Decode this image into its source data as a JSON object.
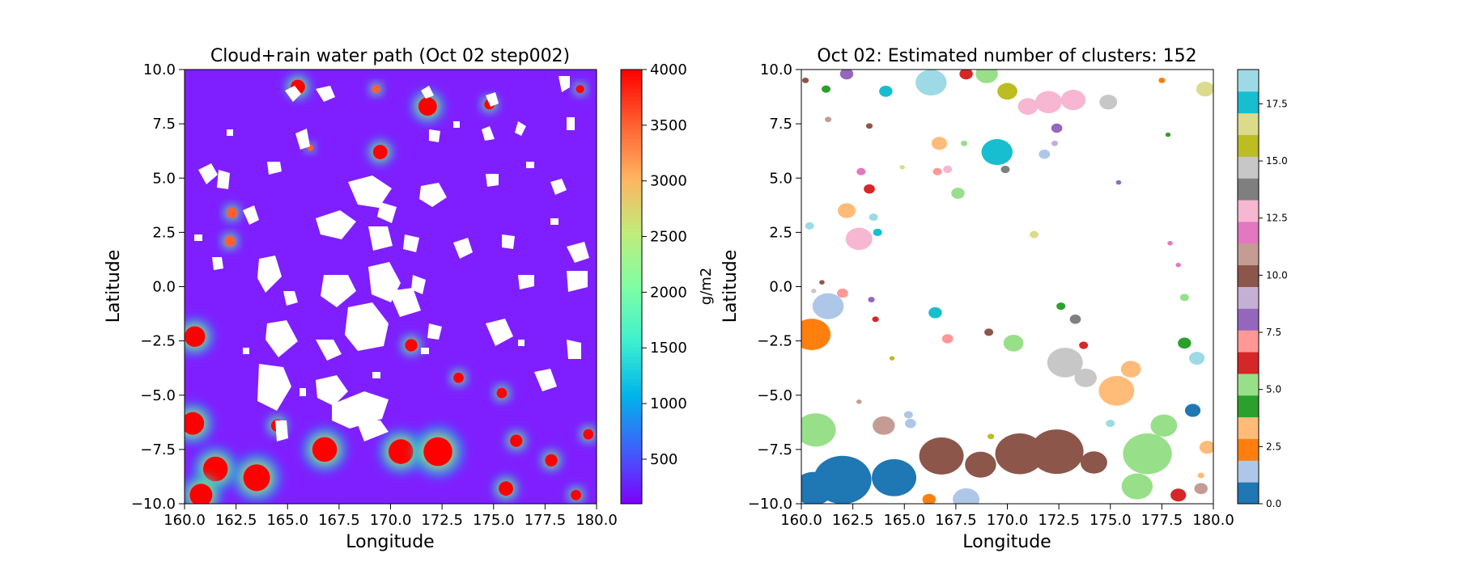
{
  "chart_data": [
    {
      "type": "heatmap",
      "title": "Cloud+rain water path (Oct 02 step002)",
      "xlabel": "Longitude",
      "ylabel": "Latitude",
      "xlim": [
        160.0,
        180.0
      ],
      "ylim": [
        -10.0,
        10.0
      ],
      "xticks": [
        "160.0",
        "162.5",
        "165.0",
        "167.5",
        "170.0",
        "172.5",
        "175.0",
        "177.5",
        "180.0"
      ],
      "yticks": [
        "10.0",
        "7.5",
        "5.0",
        "2.5",
        "0.0",
        "−2.5",
        "−5.0",
        "−7.5",
        "−10.0"
      ],
      "background_color": "#7f1fff",
      "colorbar": {
        "label": "g/m2",
        "range": [
          100,
          4000
        ],
        "ticks": [
          "4000",
          "3500",
          "3000",
          "2500",
          "2000",
          "1500",
          "1000",
          "500"
        ],
        "colormap": [
          "#7f00ff",
          "#3f60fa",
          "#00b4eb",
          "#3ff0cf",
          "#80fea4",
          "#c0ec7a",
          "#ffb360",
          "#ff5f30",
          "#ff0000"
        ]
      },
      "high_value_cells": [
        {
          "lon": 165.5,
          "lat": 9.2,
          "value": 4000,
          "r": 0.35
        },
        {
          "lon": 171.8,
          "lat": 8.3,
          "value": 4000,
          "r": 0.45
        },
        {
          "lon": 169.5,
          "lat": 6.2,
          "value": 4000,
          "r": 0.35
        },
        {
          "lon": 174.8,
          "lat": 8.4,
          "value": 3800,
          "r": 0.25
        },
        {
          "lon": 160.5,
          "lat": -2.3,
          "value": 4000,
          "r": 0.5
        },
        {
          "lon": 162.3,
          "lat": 3.4,
          "value": 3600,
          "r": 0.25
        },
        {
          "lon": 162.2,
          "lat": 2.1,
          "value": 3600,
          "r": 0.25
        },
        {
          "lon": 160.4,
          "lat": -6.3,
          "value": 4000,
          "r": 0.55
        },
        {
          "lon": 161.5,
          "lat": -8.4,
          "value": 4000,
          "r": 0.6
        },
        {
          "lon": 160.8,
          "lat": -9.6,
          "value": 4000,
          "r": 0.55
        },
        {
          "lon": 163.5,
          "lat": -8.8,
          "value": 4000,
          "r": 0.65
        },
        {
          "lon": 164.5,
          "lat": -6.4,
          "value": 4000,
          "r": 0.3
        },
        {
          "lon": 166.8,
          "lat": -7.5,
          "value": 4000,
          "r": 0.6
        },
        {
          "lon": 170.5,
          "lat": -7.6,
          "value": 4000,
          "r": 0.6
        },
        {
          "lon": 172.3,
          "lat": -7.6,
          "value": 4000,
          "r": 0.7
        },
        {
          "lon": 171.0,
          "lat": -2.7,
          "value": 3800,
          "r": 0.3
        },
        {
          "lon": 173.3,
          "lat": -4.2,
          "value": 3800,
          "r": 0.25
        },
        {
          "lon": 175.4,
          "lat": -4.9,
          "value": 3800,
          "r": 0.25
        },
        {
          "lon": 176.1,
          "lat": -7.1,
          "value": 4000,
          "r": 0.3
        },
        {
          "lon": 175.6,
          "lat": -9.3,
          "value": 4000,
          "r": 0.35
        },
        {
          "lon": 177.8,
          "lat": -8.0,
          "value": 3800,
          "r": 0.3
        },
        {
          "lon": 179.6,
          "lat": -6.8,
          "value": 3800,
          "r": 0.25
        },
        {
          "lon": 179.0,
          "lat": -9.6,
          "value": 3800,
          "r": 0.25
        },
        {
          "lon": 179.2,
          "lat": 9.1,
          "value": 3800,
          "r": 0.2
        },
        {
          "lon": 166.1,
          "lat": 6.4,
          "value": 3400,
          "r": 0.15
        },
        {
          "lon": 169.3,
          "lat": 9.1,
          "value": 3400,
          "r": 0.2
        }
      ]
    },
    {
      "type": "scatter",
      "title": "Oct 02: Estimated number of clusters: 152",
      "xlabel": "Longitude",
      "ylabel": "Latitude",
      "xlim": [
        160.0,
        180.0
      ],
      "ylim": [
        -10.0,
        10.0
      ],
      "xticks": [
        "160.0",
        "162.5",
        "165.0",
        "167.5",
        "170.0",
        "172.5",
        "175.0",
        "177.5",
        "180.0"
      ],
      "yticks": [
        "10.0",
        "7.5",
        "5.0",
        "2.5",
        "0.0",
        "−2.5",
        "−5.0",
        "−7.5",
        "−10.0"
      ],
      "colorbar": {
        "range": [
          0,
          19
        ],
        "ticks": [
          "17.5",
          "15.0",
          "12.5",
          "10.0",
          "7.5",
          "5.0",
          "2.5",
          "0.0"
        ],
        "colors": [
          "#1f77b4",
          "#aec7e8",
          "#ff7f0e",
          "#ffbb78",
          "#2ca02c",
          "#98df8a",
          "#d62728",
          "#ff9896",
          "#9467bd",
          "#c5b0d5",
          "#8c564b",
          "#c49c94",
          "#e377c2",
          "#f7b6d2",
          "#7f7f7f",
          "#c7c7c7",
          "#bcbd22",
          "#dbdb8d",
          "#17becf",
          "#9edae5"
        ]
      },
      "clusters": [
        {
          "lon": 160.2,
          "lat": 9.5,
          "label": 10,
          "r": 0.15
        },
        {
          "lon": 161.2,
          "lat": 9.1,
          "label": 4,
          "r": 0.2
        },
        {
          "lon": 162.2,
          "lat": 9.8,
          "label": 8,
          "r": 0.3
        },
        {
          "lon": 164.1,
          "lat": 9.0,
          "label": 18,
          "r": 0.3
        },
        {
          "lon": 166.3,
          "lat": 9.4,
          "label": 19,
          "r": 0.7
        },
        {
          "lon": 168.0,
          "lat": 9.8,
          "label": 6,
          "r": 0.3
        },
        {
          "lon": 169.0,
          "lat": 9.8,
          "label": 5,
          "r": 0.5
        },
        {
          "lon": 170.0,
          "lat": 9.0,
          "label": 16,
          "r": 0.45
        },
        {
          "lon": 172.0,
          "lat": 8.5,
          "label": 13,
          "r": 0.6
        },
        {
          "lon": 171.0,
          "lat": 8.3,
          "label": 13,
          "r": 0.45
        },
        {
          "lon": 173.2,
          "lat": 8.6,
          "label": 13,
          "r": 0.55
        },
        {
          "lon": 174.9,
          "lat": 8.5,
          "label": 15,
          "r": 0.4
        },
        {
          "lon": 177.5,
          "lat": 9.5,
          "label": 2,
          "r": 0.15
        },
        {
          "lon": 179.6,
          "lat": 9.1,
          "label": 17,
          "r": 0.4
        },
        {
          "lon": 172.4,
          "lat": 7.3,
          "label": 8,
          "r": 0.25
        },
        {
          "lon": 172.3,
          "lat": 6.6,
          "label": 9,
          "r": 0.15
        },
        {
          "lon": 169.5,
          "lat": 6.2,
          "label": 18,
          "r": 0.7
        },
        {
          "lon": 171.8,
          "lat": 6.1,
          "label": 1,
          "r": 0.25
        },
        {
          "lon": 166.7,
          "lat": 6.6,
          "label": 3,
          "r": 0.35
        },
        {
          "lon": 167.9,
          "lat": 6.6,
          "label": 5,
          "r": 0.15
        },
        {
          "lon": 163.3,
          "lat": 4.5,
          "label": 6,
          "r": 0.25
        },
        {
          "lon": 162.9,
          "lat": 5.3,
          "label": 12,
          "r": 0.2
        },
        {
          "lon": 162.2,
          "lat": 3.5,
          "label": 3,
          "r": 0.4
        },
        {
          "lon": 167.6,
          "lat": 4.3,
          "label": 5,
          "r": 0.3
        },
        {
          "lon": 166.6,
          "lat": 5.3,
          "label": 7,
          "r": 0.2
        },
        {
          "lon": 167.1,
          "lat": 5.4,
          "label": 13,
          "r": 0.2
        },
        {
          "lon": 169.9,
          "lat": 5.4,
          "label": 14,
          "r": 0.2
        },
        {
          "lon": 161.3,
          "lat": 7.7,
          "label": 11,
          "r": 0.15
        },
        {
          "lon": 163.3,
          "lat": 7.4,
          "label": 10,
          "r": 0.15
        },
        {
          "lon": 162.8,
          "lat": 2.2,
          "label": 13,
          "r": 0.6
        },
        {
          "lon": 163.7,
          "lat": 2.5,
          "label": 18,
          "r": 0.2
        },
        {
          "lon": 163.5,
          "lat": 3.2,
          "label": 19,
          "r": 0.2
        },
        {
          "lon": 160.4,
          "lat": 2.8,
          "label": 19,
          "r": 0.2
        },
        {
          "lon": 171.3,
          "lat": 2.4,
          "label": 17,
          "r": 0.2
        },
        {
          "lon": 160.5,
          "lat": -2.2,
          "label": 2,
          "r": 0.85
        },
        {
          "lon": 161.3,
          "lat": -0.9,
          "label": 1,
          "r": 0.7
        },
        {
          "lon": 162.0,
          "lat": -0.3,
          "label": 7,
          "r": 0.25
        },
        {
          "lon": 163.4,
          "lat": -0.6,
          "label": 8,
          "r": 0.15
        },
        {
          "lon": 163.6,
          "lat": -1.5,
          "label": 6,
          "r": 0.15
        },
        {
          "lon": 166.5,
          "lat": -1.2,
          "label": 18,
          "r": 0.3
        },
        {
          "lon": 167.1,
          "lat": -2.4,
          "label": 7,
          "r": 0.25
        },
        {
          "lon": 169.1,
          "lat": -2.1,
          "label": 10,
          "r": 0.2
        },
        {
          "lon": 170.3,
          "lat": -2.6,
          "label": 5,
          "r": 0.45
        },
        {
          "lon": 172.6,
          "lat": -0.9,
          "label": 4,
          "r": 0.2
        },
        {
          "lon": 173.3,
          "lat": -1.5,
          "label": 14,
          "r": 0.25
        },
        {
          "lon": 173.7,
          "lat": -2.7,
          "label": 6,
          "r": 0.2
        },
        {
          "lon": 172.8,
          "lat": -3.5,
          "label": 15,
          "r": 0.8
        },
        {
          "lon": 173.8,
          "lat": -4.2,
          "label": 15,
          "r": 0.5
        },
        {
          "lon": 175.3,
          "lat": -4.8,
          "label": 3,
          "r": 0.8
        },
        {
          "lon": 176.0,
          "lat": -3.8,
          "label": 3,
          "r": 0.45
        },
        {
          "lon": 178.6,
          "lat": -2.6,
          "label": 4,
          "r": 0.3
        },
        {
          "lon": 179.2,
          "lat": -3.3,
          "label": 19,
          "r": 0.35
        },
        {
          "lon": 178.6,
          "lat": -0.5,
          "label": 5,
          "r": 0.2
        },
        {
          "lon": 175.0,
          "lat": -6.3,
          "label": 19,
          "r": 0.2
        },
        {
          "lon": 160.7,
          "lat": -6.6,
          "label": 5,
          "r": 0.9
        },
        {
          "lon": 164.0,
          "lat": -6.4,
          "label": 11,
          "r": 0.5
        },
        {
          "lon": 165.3,
          "lat": -6.3,
          "label": 1,
          "r": 0.25
        },
        {
          "lon": 162.0,
          "lat": -8.9,
          "label": 0,
          "r": 1.3
        },
        {
          "lon": 164.5,
          "lat": -8.8,
          "label": 0,
          "r": 1.0
        },
        {
          "lon": 160.6,
          "lat": -9.3,
          "label": 0,
          "r": 0.9
        },
        {
          "lon": 166.8,
          "lat": -7.8,
          "label": 10,
          "r": 1.0
        },
        {
          "lon": 168.7,
          "lat": -8.2,
          "label": 10,
          "r": 0.7
        },
        {
          "lon": 170.6,
          "lat": -7.7,
          "label": 10,
          "r": 1.1
        },
        {
          "lon": 172.4,
          "lat": -7.6,
          "label": 10,
          "r": 1.2
        },
        {
          "lon": 174.2,
          "lat": -8.1,
          "label": 10,
          "r": 0.6
        },
        {
          "lon": 168.0,
          "lat": -9.8,
          "label": 1,
          "r": 0.6
        },
        {
          "lon": 166.2,
          "lat": -9.8,
          "label": 2,
          "r": 0.3
        },
        {
          "lon": 176.8,
          "lat": -7.7,
          "label": 5,
          "r": 1.1
        },
        {
          "lon": 177.6,
          "lat": -6.4,
          "label": 5,
          "r": 0.6
        },
        {
          "lon": 176.3,
          "lat": -9.2,
          "label": 5,
          "r": 0.7
        },
        {
          "lon": 178.3,
          "lat": -9.6,
          "label": 6,
          "r": 0.35
        },
        {
          "lon": 179.0,
          "lat": -5.7,
          "label": 0,
          "r": 0.35
        },
        {
          "lon": 179.7,
          "lat": -7.4,
          "label": 3,
          "r": 0.35
        },
        {
          "lon": 179.4,
          "lat": -9.3,
          "label": 11,
          "r": 0.3
        },
        {
          "lon": 179.4,
          "lat": -8.7,
          "label": 3,
          "r": 0.15
        },
        {
          "lon": 169.2,
          "lat": -6.9,
          "label": 16,
          "r": 0.15
        },
        {
          "lon": 162.8,
          "lat": -5.3,
          "label": 11,
          "r": 0.12
        },
        {
          "lon": 165.2,
          "lat": -5.9,
          "label": 1,
          "r": 0.2
        },
        {
          "lon": 164.4,
          "lat": -3.3,
          "label": 16,
          "r": 0.12
        },
        {
          "lon": 161.0,
          "lat": 0.2,
          "label": 10,
          "r": 0.12
        },
        {
          "lon": 160.6,
          "lat": -0.2,
          "label": 15,
          "r": 0.12
        },
        {
          "lon": 164.9,
          "lat": 5.5,
          "label": 17,
          "r": 0.12
        },
        {
          "lon": 175.4,
          "lat": 4.8,
          "label": 8,
          "r": 0.12
        },
        {
          "lon": 177.8,
          "lat": 7.0,
          "label": 4,
          "r": 0.1
        },
        {
          "lon": 177.9,
          "lat": 2.0,
          "label": 12,
          "r": 0.12
        },
        {
          "lon": 178.3,
          "lat": 1.0,
          "label": 12,
          "r": 0.12
        }
      ]
    }
  ]
}
